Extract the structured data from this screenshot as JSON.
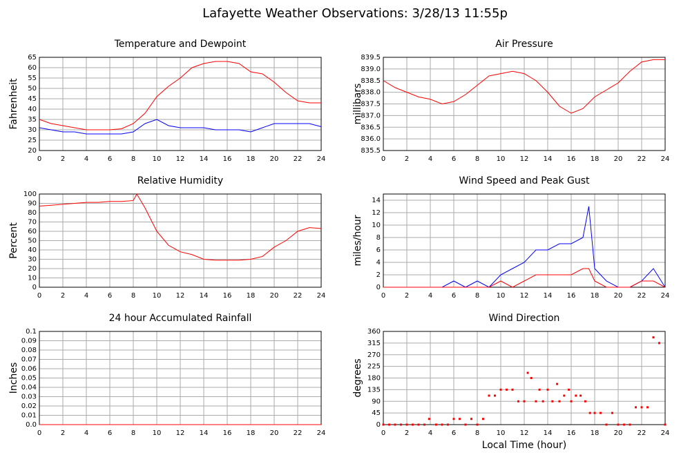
{
  "title": "Lafayette Weather Observations: 3/28/13 11:55p",
  "chart_data": [
    {
      "type": "line",
      "title": "Temperature and Dewpoint",
      "ylabel": "Fahrenheit",
      "grid": true,
      "xlim": [
        0,
        24
      ],
      "xticks": [
        0,
        2,
        4,
        6,
        8,
        10,
        12,
        14,
        16,
        18,
        20,
        22,
        24
      ],
      "ylim": [
        20,
        65
      ],
      "yticks": [
        20,
        25,
        30,
        35,
        40,
        45,
        50,
        55,
        60,
        65
      ],
      "x": [
        0,
        1,
        2,
        3,
        4,
        5,
        6,
        7,
        8,
        9,
        10,
        11,
        12,
        13,
        14,
        15,
        16,
        17,
        18,
        19,
        20,
        21,
        22,
        23,
        24
      ],
      "series": [
        {
          "color": "#ff0000",
          "values": [
            35,
            33,
            32,
            31,
            30,
            30,
            30,
            30.5,
            33,
            38,
            46,
            51,
            55,
            60,
            62,
            63,
            63,
            62,
            58,
            57,
            53,
            48,
            44,
            43,
            43
          ]
        },
        {
          "color": "#0000ff",
          "values": [
            31,
            30,
            29,
            29,
            28,
            28,
            28,
            28,
            29,
            33,
            35,
            32,
            31,
            31,
            31,
            30,
            30,
            30,
            29,
            31,
            33,
            33,
            33,
            33,
            31.5
          ]
        }
      ]
    },
    {
      "type": "line",
      "title": "Air Pressure",
      "ylabel": "millibars",
      "grid": true,
      "xlim": [
        0,
        24
      ],
      "xticks": [
        0,
        2,
        4,
        6,
        8,
        10,
        12,
        14,
        16,
        18,
        20,
        22,
        24
      ],
      "ylim": [
        835.5,
        839.5
      ],
      "yticks": [
        {
          "value": 835.5,
          "label": "835.5"
        },
        {
          "value": 836,
          "label": "836.0"
        },
        {
          "value": 836.5,
          "label": "836.5"
        },
        {
          "value": 837,
          "label": "837.0"
        },
        {
          "value": 837.5,
          "label": "837.5"
        },
        {
          "value": 838,
          "label": "838.0"
        },
        {
          "value": 838.5,
          "label": "838.5"
        },
        {
          "value": 839,
          "label": "839.0"
        },
        {
          "value": 839.5,
          "label": "839.5"
        }
      ],
      "x": [
        0,
        1,
        2,
        3,
        4,
        5,
        6,
        7,
        8,
        9,
        10,
        11,
        12,
        13,
        14,
        15,
        16,
        17,
        18,
        19,
        20,
        21,
        22,
        23,
        24
      ],
      "series": [
        {
          "color": "#ff0000",
          "values": [
            838.5,
            838.2,
            838.0,
            837.8,
            837.7,
            837.5,
            837.6,
            837.9,
            838.3,
            838.7,
            838.8,
            838.9,
            838.8,
            838.5,
            838.0,
            837.4,
            837.1,
            837.3,
            837.8,
            838.1,
            838.4,
            838.9,
            839.3,
            839.4,
            839.4
          ]
        }
      ]
    },
    {
      "type": "line",
      "title": "Relative Humidity",
      "ylabel": "Percent",
      "grid": true,
      "xlim": [
        0,
        24
      ],
      "xticks": [
        0,
        2,
        4,
        6,
        8,
        10,
        12,
        14,
        16,
        18,
        20,
        22,
        24
      ],
      "ylim": [
        0,
        100
      ],
      "yticks": [
        0,
        10,
        20,
        30,
        40,
        50,
        60,
        70,
        80,
        90,
        100
      ],
      "x": [
        0,
        1,
        2,
        3,
        4,
        5,
        6,
        7,
        8,
        8.3,
        9,
        10,
        11,
        12,
        13,
        14,
        15,
        16,
        17,
        18,
        19,
        20,
        21,
        22,
        23,
        24
      ],
      "series": [
        {
          "color": "#ff0000",
          "values": [
            87,
            88,
            89,
            90,
            91,
            91,
            92,
            92,
            93,
            100,
            85,
            60,
            45,
            38,
            35,
            30,
            29,
            29,
            29,
            30,
            33,
            43,
            50,
            60,
            64,
            63
          ]
        }
      ]
    },
    {
      "type": "line",
      "title": "Wind Speed and Peak Gust",
      "ylabel": "miles/hour",
      "grid": true,
      "xlim": [
        0,
        24
      ],
      "xticks": [
        0,
        2,
        4,
        6,
        8,
        10,
        12,
        14,
        16,
        18,
        20,
        22,
        24
      ],
      "ylim": [
        0,
        15
      ],
      "yticks": [
        0,
        2,
        4,
        6,
        8,
        10,
        12,
        14
      ],
      "x": [
        0,
        1,
        2,
        3,
        4,
        5,
        6,
        7,
        8,
        9,
        10,
        11,
        12,
        13,
        14,
        15,
        16,
        17,
        17.5,
        18,
        19,
        20,
        21,
        22,
        23,
        24
      ],
      "series": [
        {
          "color": "#0000ff",
          "values": [
            0,
            0,
            0,
            0,
            0,
            0,
            1,
            0,
            1,
            0,
            2,
            3,
            4,
            6,
            6,
            7,
            7,
            8,
            13,
            3,
            1,
            0,
            0,
            1,
            3,
            0
          ]
        },
        {
          "color": "#ff0000",
          "values": [
            0,
            0,
            0,
            0,
            0,
            0,
            0,
            0,
            0,
            0,
            1,
            0,
            1,
            2,
            2,
            2,
            2,
            3,
            3,
            1,
            0,
            0,
            0,
            1,
            1,
            0
          ]
        }
      ]
    },
    {
      "type": "line",
      "title": "24 hour Accumulated Rainfall",
      "ylabel": "Inches",
      "grid": true,
      "xlim": [
        0,
        24
      ],
      "xticks": [
        0,
        2,
        4,
        6,
        8,
        10,
        12,
        14,
        16,
        18,
        20,
        22,
        24
      ],
      "ylim": [
        0,
        0.1
      ],
      "yticks": [
        {
          "value": 0,
          "label": "0.0"
        },
        0.01,
        0.02,
        0.03,
        0.04,
        0.05,
        0.06,
        0.07,
        0.08,
        0.09,
        0.1
      ],
      "x": [
        0,
        24
      ],
      "series": [
        {
          "color": "#ff0000",
          "values": [
            0,
            0
          ]
        }
      ]
    },
    {
      "type": "scatter",
      "title": "Wind Direction",
      "ylabel": "degrees",
      "xlabel": "Local Time (hour)",
      "grid": true,
      "xlim": [
        0,
        24
      ],
      "xticks": [
        0,
        2,
        4,
        6,
        8,
        10,
        12,
        14,
        16,
        18,
        20,
        22,
        24
      ],
      "ylim": [
        0,
        360
      ],
      "yticks": [
        0,
        45,
        90,
        135,
        180,
        225,
        270,
        315,
        360
      ],
      "x": [
        0,
        0.5,
        1,
        1.5,
        2,
        2.5,
        3,
        3.5,
        3.9,
        4.5,
        5,
        5.5,
        6,
        6.5,
        7,
        7.5,
        8,
        8.5,
        9,
        9.5,
        10,
        10.5,
        11,
        11.5,
        12,
        12.3,
        12.6,
        13,
        13.3,
        13.6,
        14,
        14.4,
        14.8,
        15,
        15.4,
        15.8,
        16,
        16.4,
        16.8,
        17.2,
        17.6,
        18,
        18.5,
        19,
        19.5,
        20,
        20.5,
        21,
        21.5,
        22,
        22.5,
        23,
        23.5,
        24
      ],
      "series": [
        {
          "color": "#ff0000",
          "values": [
            0,
            0,
            0,
            0,
            0,
            0,
            0,
            0,
            22,
            0,
            0,
            0,
            22,
            22,
            0,
            22,
            0,
            22,
            112,
            112,
            135,
            135,
            135,
            90,
            90,
            200,
            180,
            90,
            135,
            90,
            135,
            90,
            157,
            90,
            112,
            135,
            90,
            112,
            112,
            90,
            45,
            45,
            45,
            0,
            45,
            0,
            0,
            0,
            67,
            67,
            67,
            337,
            315,
            0
          ]
        }
      ]
    }
  ]
}
